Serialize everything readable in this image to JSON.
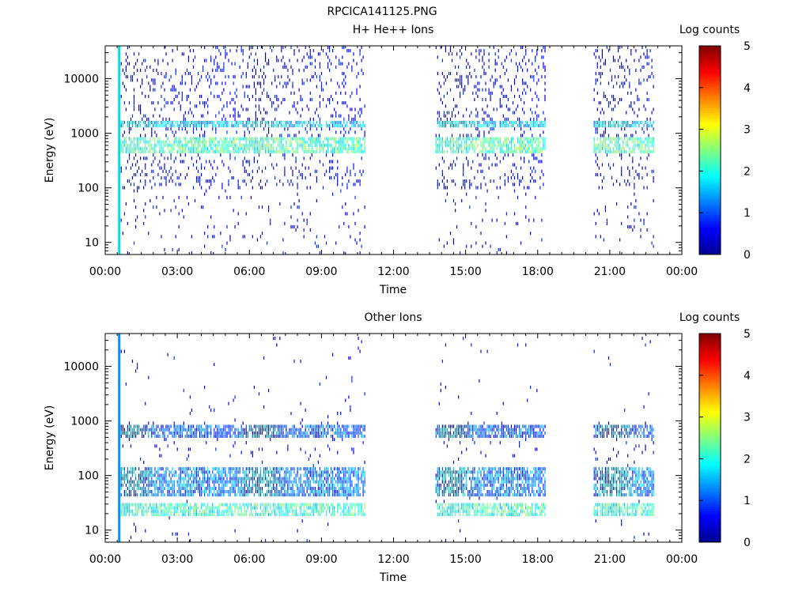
{
  "page_title": "RPCICA141125.PNG",
  "colors": {
    "colormap": [
      "#00008f",
      "#0000ff",
      "#0080ff",
      "#00ffff",
      "#80ff80",
      "#ffff00",
      "#ff8000",
      "#ff0000",
      "#800000"
    ]
  },
  "chart_data": [
    {
      "type": "heatmap",
      "title": "H+ He++ Ions",
      "xlabel": "Time",
      "ylabel": "Energy (eV)",
      "xlim": [
        "00:00",
        "24:00"
      ],
      "x_ticks": [
        "00:00",
        "03:00",
        "06:00",
        "09:00",
        "12:00",
        "15:00",
        "18:00",
        "21:00",
        "00:00"
      ],
      "y_scale": "log",
      "ylim": [
        6,
        40000
      ],
      "y_ticks": [
        "10",
        "100",
        "1000",
        "10000"
      ],
      "colorbar": {
        "label": "Log counts",
        "range": [
          0,
          5
        ],
        "ticks": [
          "0",
          "1",
          "2",
          "3",
          "4",
          "5"
        ]
      },
      "data_intervals": [
        [
          "00:35",
          "10:50"
        ],
        [
          "13:45",
          "18:20"
        ],
        [
          "20:20",
          "22:50"
        ]
      ],
      "vertical_line_time": "00:35",
      "bands": [
        {
          "energy_range": [
            1300,
            1800
          ],
          "log_counts": 1.6
        },
        {
          "energy_range": [
            400,
            900
          ],
          "log_counts": 2.2
        }
      ]
    },
    {
      "type": "heatmap",
      "title": "Other Ions",
      "xlabel": "Time",
      "ylabel": "Energy (eV)",
      "xlim": [
        "00:00",
        "24:00"
      ],
      "x_ticks": [
        "00:00",
        "03:00",
        "06:00",
        "09:00",
        "12:00",
        "15:00",
        "18:00",
        "21:00",
        "00:00"
      ],
      "y_scale": "log",
      "ylim": [
        6,
        40000
      ],
      "y_ticks": [
        "10",
        "100",
        "1000",
        "10000"
      ],
      "colorbar": {
        "label": "Log counts",
        "range": [
          0,
          5
        ],
        "ticks": [
          "0",
          "1",
          "2",
          "3",
          "4",
          "5"
        ]
      },
      "data_intervals": [
        [
          "00:35",
          "10:50"
        ],
        [
          "13:45",
          "18:20"
        ],
        [
          "20:20",
          "22:50"
        ]
      ],
      "vertical_line_time": "00:35",
      "bands": [
        {
          "energy_range": [
            17,
            30
          ],
          "log_counts": 2.1
        },
        {
          "energy_range": [
            40,
            150
          ],
          "log_counts": 1.2
        },
        {
          "energy_range": [
            500,
            800
          ],
          "log_counts": 1.0
        }
      ]
    }
  ]
}
